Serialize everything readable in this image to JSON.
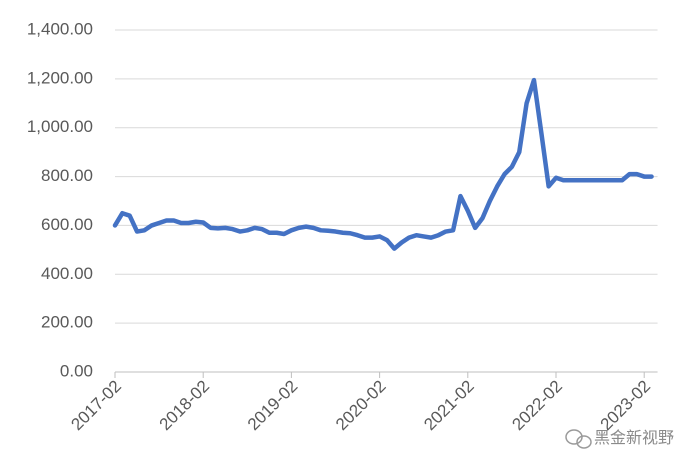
{
  "chart_data": {
    "type": "line",
    "categories": [
      "2017-02",
      null,
      null,
      null,
      null,
      null,
      null,
      null,
      null,
      null,
      null,
      null,
      "2018-02",
      null,
      null,
      null,
      null,
      null,
      null,
      null,
      null,
      null,
      null,
      null,
      "2019-02",
      null,
      null,
      null,
      null,
      null,
      null,
      null,
      null,
      null,
      null,
      null,
      "2020-02",
      null,
      null,
      null,
      null,
      null,
      null,
      null,
      null,
      null,
      null,
      null,
      "2021-02",
      null,
      null,
      null,
      null,
      null,
      null,
      null,
      null,
      null,
      null,
      null,
      "2022-02",
      null,
      null,
      null,
      null,
      null,
      null,
      null,
      null,
      null,
      null,
      null,
      "2023-02",
      null
    ],
    "values": [
      600,
      650,
      640,
      575,
      580,
      600,
      610,
      620,
      620,
      610,
      610,
      615,
      612,
      590,
      588,
      590,
      585,
      575,
      580,
      590,
      585,
      570,
      570,
      565,
      580,
      590,
      595,
      590,
      580,
      578,
      575,
      570,
      568,
      560,
      550,
      550,
      555,
      540,
      505,
      530,
      550,
      560,
      555,
      550,
      560,
      575,
      580,
      720,
      660,
      590,
      630,
      700,
      760,
      810,
      840,
      900,
      1100,
      1195,
      980,
      760,
      795,
      785,
      785,
      785,
      785,
      785,
      785,
      785,
      785,
      785,
      810,
      810,
      800,
      800
    ],
    "color": "#4472c4",
    "ylim": [
      0,
      1400
    ],
    "yticks": [
      {
        "value": 0,
        "label": "0.00"
      },
      {
        "value": 200,
        "label": "200.00"
      },
      {
        "value": 400,
        "label": "400.00"
      },
      {
        "value": 600,
        "label": "600.00"
      },
      {
        "value": 800,
        "label": "800.00"
      },
      {
        "value": 1000,
        "label": "1,000.00"
      },
      {
        "value": 1200,
        "label": "1,200.00"
      },
      {
        "value": 1400,
        "label": "1,400.00"
      }
    ],
    "grid": true,
    "watermark": "黑金新视野"
  }
}
